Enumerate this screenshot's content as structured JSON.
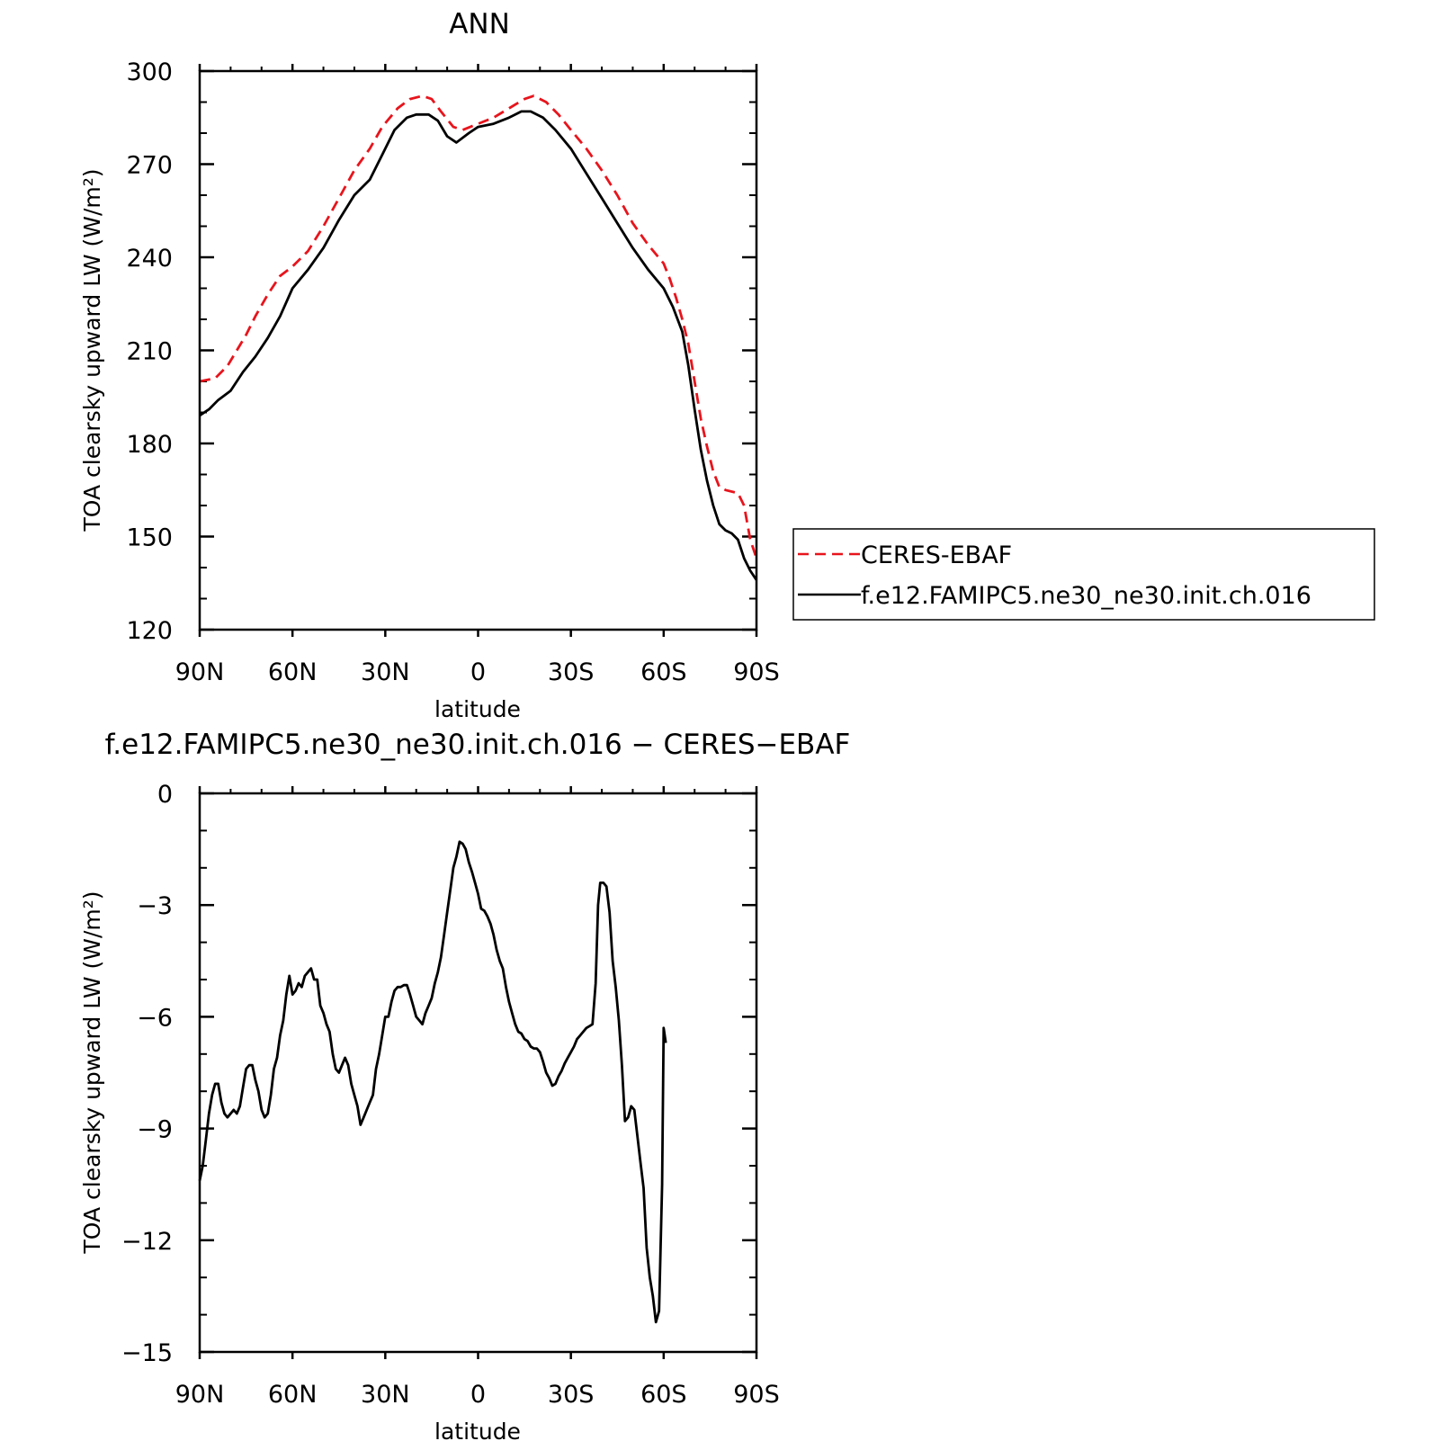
{
  "chart_data": [
    {
      "type": "line",
      "title": "ANN",
      "xlabel": "latitude",
      "ylabel": "TOA clearsky upward LW (W/m²)",
      "xlim": [
        90,
        -90
      ],
      "ylim": [
        120,
        300
      ],
      "x_ticks": [
        {
          "value": 90,
          "label": "90N"
        },
        {
          "value": 60,
          "label": "60N"
        },
        {
          "value": 30,
          "label": "30N"
        },
        {
          "value": 0,
          "label": "0"
        },
        {
          "value": -30,
          "label": "30S"
        },
        {
          "value": -60,
          "label": "60S"
        },
        {
          "value": -90,
          "label": "90S"
        }
      ],
      "y_ticks": [
        {
          "value": 300,
          "label": "300"
        },
        {
          "value": 270,
          "label": "270"
        },
        {
          "value": 240,
          "label": "240"
        },
        {
          "value": 210,
          "label": "210"
        },
        {
          "value": 180,
          "label": "180"
        },
        {
          "value": 150,
          "label": "150"
        },
        {
          "value": 120,
          "label": "120"
        }
      ],
      "grid": false,
      "legend_position": "right",
      "series": [
        {
          "name": "CERES-EBAF",
          "color": "#e8141c",
          "dash": "dashed",
          "points": [
            [
              90,
              200
            ],
            [
              85,
              201
            ],
            [
              81,
              205
            ],
            [
              78,
              210
            ],
            [
              75,
              215
            ],
            [
              72,
              221
            ],
            [
              68,
              228
            ],
            [
              64,
              234
            ],
            [
              60,
              237
            ],
            [
              55,
              242
            ],
            [
              50,
              250
            ],
            [
              45,
              259
            ],
            [
              40,
              268
            ],
            [
              35,
              275
            ],
            [
              31,
              282
            ],
            [
              26,
              288
            ],
            [
              22,
              291
            ],
            [
              18,
              292
            ],
            [
              15,
              291
            ],
            [
              12,
              287
            ],
            [
              8,
              282
            ],
            [
              5,
              281
            ],
            [
              0,
              283
            ],
            [
              -5,
              285
            ],
            [
              -10,
              288
            ],
            [
              -15,
              291
            ],
            [
              -18,
              292
            ],
            [
              -22,
              290
            ],
            [
              -26,
              286
            ],
            [
              -30,
              281
            ],
            [
              -35,
              275
            ],
            [
              -40,
              268
            ],
            [
              -45,
              260
            ],
            [
              -50,
              251
            ],
            [
              -55,
              244
            ],
            [
              -60,
              238
            ],
            [
              -62,
              233
            ],
            [
              -64,
              227
            ],
            [
              -66,
              220
            ],
            [
              -68,
              212
            ],
            [
              -70,
              200
            ],
            [
              -72,
              188
            ],
            [
              -74,
              179
            ],
            [
              -76,
              171
            ],
            [
              -78,
              166
            ],
            [
              -80,
              165
            ],
            [
              -84,
              164
            ],
            [
              -86,
              160
            ],
            [
              -88,
              149
            ],
            [
              -90,
              143
            ]
          ]
        },
        {
          "name": "f.e12.FAMIPC5.ne30_ne30.init.ch.016",
          "color": "#000000",
          "dash": "solid",
          "points": [
            [
              90,
              189
            ],
            [
              87,
              191
            ],
            [
              84,
              194
            ],
            [
              80,
              197
            ],
            [
              76,
              203
            ],
            [
              72,
              208
            ],
            [
              68,
              214
            ],
            [
              64,
              221
            ],
            [
              60,
              230
            ],
            [
              55,
              236
            ],
            [
              50,
              243
            ],
            [
              45,
              252
            ],
            [
              40,
              260
            ],
            [
              35,
              265
            ],
            [
              31,
              273
            ],
            [
              27,
              281
            ],
            [
              23,
              285
            ],
            [
              20,
              286
            ],
            [
              16,
              286
            ],
            [
              13,
              284
            ],
            [
              10,
              279
            ],
            [
              7,
              277
            ],
            [
              3,
              280
            ],
            [
              0,
              282
            ],
            [
              -5,
              283
            ],
            [
              -10,
              285
            ],
            [
              -14,
              287
            ],
            [
              -17,
              287
            ],
            [
              -21,
              285
            ],
            [
              -25,
              281
            ],
            [
              -30,
              275
            ],
            [
              -35,
              267
            ],
            [
              -40,
              259
            ],
            [
              -45,
              251
            ],
            [
              -50,
              243
            ],
            [
              -55,
              236
            ],
            [
              -60,
              230
            ],
            [
              -63,
              224
            ],
            [
              -66,
              216
            ],
            [
              -68,
              205
            ],
            [
              -70,
              191
            ],
            [
              -72,
              178
            ],
            [
              -74,
              168
            ],
            [
              -76,
              160
            ],
            [
              -78,
              154
            ],
            [
              -80,
              152
            ],
            [
              -82,
              151
            ],
            [
              -84,
              149
            ],
            [
              -86,
              143
            ],
            [
              -88,
              139
            ],
            [
              -90,
              136
            ]
          ]
        }
      ]
    },
    {
      "type": "line",
      "title": "f.e12.FAMIPC5.ne30_ne30.init.ch.016 − CERES−EBAF",
      "xlabel": "latitude",
      "ylabel": "TOA clearsky upward LW (W/m²)",
      "xlim": [
        90,
        -90
      ],
      "ylim": [
        -15,
        0
      ],
      "x_ticks": [
        {
          "value": 90,
          "label": "90N"
        },
        {
          "value": 60,
          "label": "60N"
        },
        {
          "value": 30,
          "label": "30N"
        },
        {
          "value": 0,
          "label": "0"
        },
        {
          "value": -30,
          "label": "30S"
        },
        {
          "value": -60,
          "label": "60S"
        },
        {
          "value": -90,
          "label": "90S"
        }
      ],
      "y_ticks": [
        {
          "value": 0,
          "label": "0"
        },
        {
          "value": -3,
          "label": "−3"
        },
        {
          "value": -6,
          "label": "−6"
        },
        {
          "value": -9,
          "label": "−9"
        },
        {
          "value": -12,
          "label": "−12"
        },
        {
          "value": -15,
          "label": "−15"
        }
      ],
      "grid": false,
      "series": [
        {
          "color": "#000000",
          "dash": "solid",
          "points": [
            [
              90,
              -10.4
            ],
            [
              89,
              -10
            ],
            [
              88,
              -9.3
            ],
            [
              87,
              -8.6
            ],
            [
              86,
              -8.1
            ],
            [
              85,
              -7.8
            ],
            [
              84,
              -7.8
            ],
            [
              83,
              -8.3
            ],
            [
              82,
              -8.6
            ],
            [
              81,
              -8.7
            ],
            [
              80,
              -8.6
            ],
            [
              79,
              -8.5
            ],
            [
              78,
              -8.6
            ],
            [
              77,
              -8.4
            ],
            [
              76,
              -7.9
            ],
            [
              75,
              -7.4
            ],
            [
              74,
              -7.3
            ],
            [
              73,
              -7.3
            ],
            [
              72,
              -7.7
            ],
            [
              71,
              -8.0
            ],
            [
              70,
              -8.5
            ],
            [
              69,
              -8.7
            ],
            [
              68,
              -8.6
            ],
            [
              67,
              -8.1
            ],
            [
              66,
              -7.4
            ],
            [
              65,
              -7.1
            ],
            [
              64,
              -6.5
            ],
            [
              63,
              -6.1
            ],
            [
              62,
              -5.4
            ],
            [
              61,
              -4.9
            ],
            [
              60,
              -5.4
            ],
            [
              59,
              -5.3
            ],
            [
              58,
              -5.1
            ],
            [
              57,
              -5.2
            ],
            [
              56,
              -4.9
            ],
            [
              55,
              -4.8
            ],
            [
              54,
              -4.7
            ],
            [
              53,
              -5.0
            ],
            [
              52,
              -5.0
            ],
            [
              51,
              -5.7
            ],
            [
              50,
              -5.9
            ],
            [
              49,
              -6.2
            ],
            [
              48,
              -6.4
            ],
            [
              47,
              -7.0
            ],
            [
              46,
              -7.4
            ],
            [
              45,
              -7.5
            ],
            [
              44,
              -7.3
            ],
            [
              43,
              -7.1
            ],
            [
              42,
              -7.3
            ],
            [
              41,
              -7.8
            ],
            [
              40,
              -8.1
            ],
            [
              39,
              -8.4
            ],
            [
              38,
              -8.9
            ],
            [
              37,
              -8.7
            ],
            [
              36,
              -8.5
            ],
            [
              35,
              -8.3
            ],
            [
              34,
              -8.1
            ],
            [
              33,
              -7.4
            ],
            [
              32,
              -7.0
            ],
            [
              31,
              -6.5
            ],
            [
              30,
              -6.0
            ],
            [
              29,
              -6.0
            ],
            [
              28,
              -5.6
            ],
            [
              27,
              -5.3
            ],
            [
              26,
              -5.2
            ],
            [
              25,
              -5.2
            ],
            [
              24,
              -5.15
            ],
            [
              23,
              -5.15
            ],
            [
              22,
              -5.4
            ],
            [
              21,
              -5.7
            ],
            [
              20,
              -6.0
            ],
            [
              19,
              -6.1
            ],
            [
              18,
              -6.2
            ],
            [
              17,
              -5.9
            ],
            [
              16,
              -5.7
            ],
            [
              15,
              -5.5
            ],
            [
              14,
              -5.1
            ],
            [
              13,
              -4.8
            ],
            [
              12,
              -4.4
            ],
            [
              11,
              -3.8
            ],
            [
              10,
              -3.2
            ],
            [
              9,
              -2.6
            ],
            [
              8,
              -2.0
            ],
            [
              7,
              -1.7
            ],
            [
              6,
              -1.3
            ],
            [
              5,
              -1.35
            ],
            [
              4,
              -1.5
            ],
            [
              3,
              -1.85
            ],
            [
              2,
              -2.1
            ],
            [
              1,
              -2.4
            ],
            [
              0,
              -2.7
            ],
            [
              -1,
              -3.1
            ],
            [
              -2,
              -3.15
            ],
            [
              -3,
              -3.3
            ],
            [
              -4,
              -3.5
            ],
            [
              -5,
              -3.8
            ],
            [
              -6,
              -4.2
            ],
            [
              -7,
              -4.5
            ],
            [
              -8,
              -4.7
            ],
            [
              -9,
              -5.2
            ],
            [
              -10,
              -5.6
            ],
            [
              -11,
              -5.9
            ],
            [
              -12,
              -6.2
            ],
            [
              -13,
              -6.4
            ],
            [
              -14,
              -6.45
            ],
            [
              -15,
              -6.6
            ],
            [
              -16,
              -6.65
            ],
            [
              -17,
              -6.8
            ],
            [
              -18,
              -6.85
            ],
            [
              -19,
              -6.85
            ],
            [
              -20,
              -6.95
            ],
            [
              -21,
              -7.2
            ],
            [
              -22,
              -7.5
            ],
            [
              -23,
              -7.65
            ],
            [
              -24,
              -7.85
            ],
            [
              -25,
              -7.8
            ],
            [
              -26,
              -7.6
            ],
            [
              -27,
              -7.45
            ],
            [
              -28,
              -7.25
            ],
            [
              -29,
              -7.1
            ],
            [
              -30,
              -6.95
            ],
            [
              -31,
              -6.8
            ],
            [
              -32,
              -6.6
            ],
            [
              -33,
              -6.5
            ],
            [
              -34,
              -6.4
            ],
            [
              -35,
              -6.3
            ],
            [
              -36,
              -6.25
            ],
            [
              -37,
              -6.2
            ],
            [
              -38,
              -5.1
            ],
            [
              -38.8,
              -3.0
            ],
            [
              -39.5,
              -2.4
            ],
            [
              -40.5,
              -2.4
            ],
            [
              -41.5,
              -2.5
            ],
            [
              -42.5,
              -3.2
            ],
            [
              -43.5,
              -4.5
            ],
            [
              -44.5,
              -5.2
            ],
            [
              -45.5,
              -6.1
            ],
            [
              -46.5,
              -7.3
            ],
            [
              -47.5,
              -8.8
            ],
            [
              -48.5,
              -8.7
            ],
            [
              -49.5,
              -8.4
            ],
            [
              -50.5,
              -8.5
            ],
            [
              -51.5,
              -9.2
            ],
            [
              -52.5,
              -9.9
            ],
            [
              -53.5,
              -10.6
            ],
            [
              -54.5,
              -12.2
            ],
            [
              -55.5,
              -13.0
            ],
            [
              -56.5,
              -13.5
            ],
            [
              -57.5,
              -14.2
            ],
            [
              -58.5,
              -13.9
            ],
            [
              -59.5,
              -10.5
            ],
            [
              -60,
              -6.3
            ],
            [
              -60.7,
              -6.7
            ]
          ]
        }
      ]
    }
  ]
}
